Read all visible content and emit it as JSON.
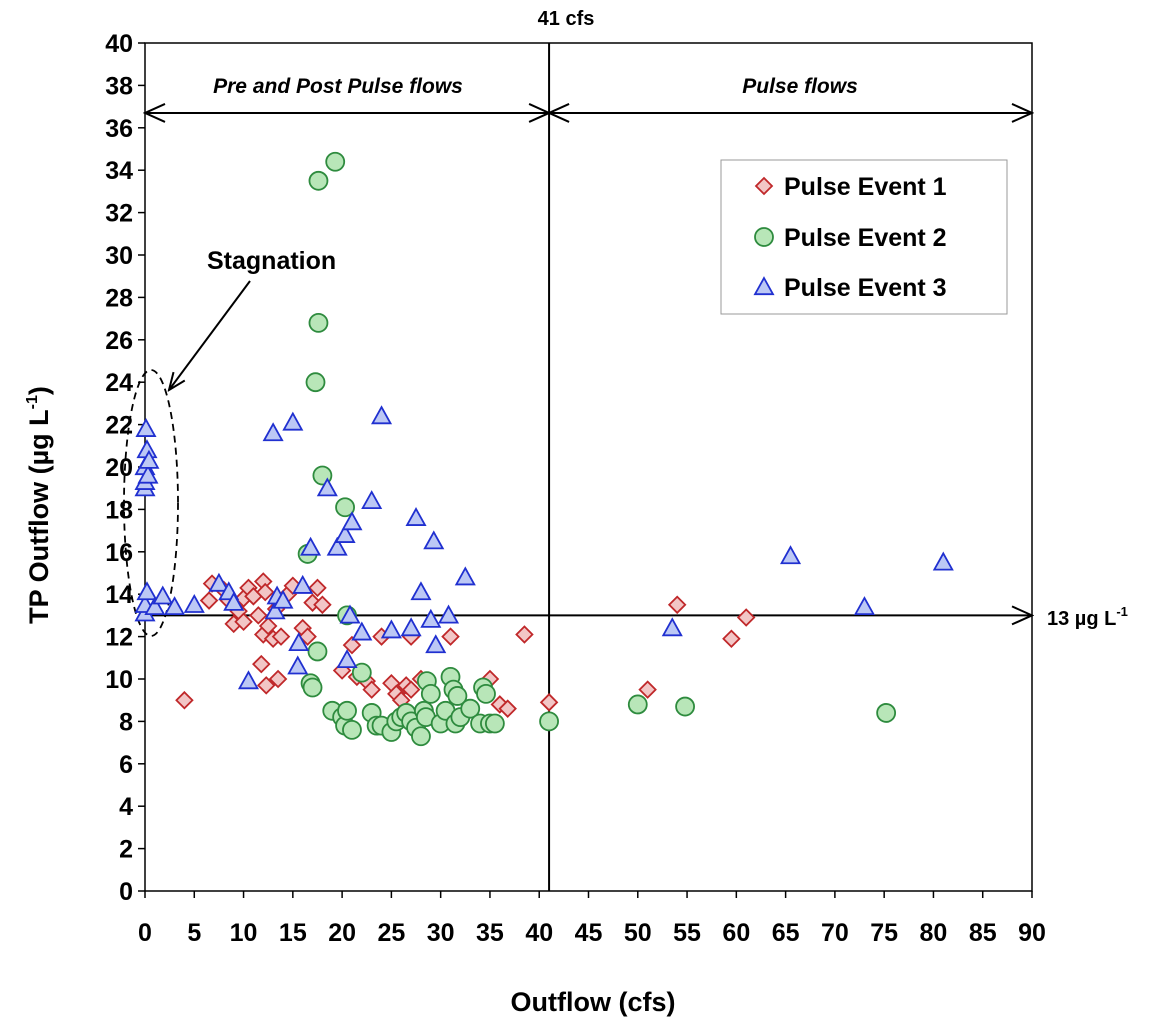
{
  "chart_data": {
    "type": "scatter",
    "xlabel": "Outflow (cfs)",
    "ylabel": "TP Outflow (µg L",
    "ylabel_sup": "-1",
    "ylabel_close": ")",
    "xlim": [
      0,
      90
    ],
    "ylim": [
      0,
      40
    ],
    "xticks": [
      "0",
      "5",
      "10",
      "15",
      "20",
      "25",
      "30",
      "35",
      "40",
      "45",
      "50",
      "55",
      "60",
      "65",
      "70",
      "75",
      "80",
      "85",
      "90"
    ],
    "yticks": [
      "0",
      "2",
      "4",
      "6",
      "8",
      "10",
      "12",
      "14",
      "16",
      "18",
      "20",
      "22",
      "24",
      "26",
      "28",
      "30",
      "32",
      "34",
      "36",
      "38",
      "40"
    ],
    "grid": false,
    "legend_position": "top-right",
    "annotations": {
      "vline_label": "41 cfs",
      "vline_x": 41,
      "hline_label": "13 µg L",
      "hline_label_sup": "-1",
      "hline_y": 13,
      "region_left": "Pre and Post Pulse flows",
      "region_right": "Pulse flows",
      "region_arrow_y": 36.7,
      "stagnation": "Stagnation"
    },
    "series": [
      {
        "name": "Pulse Event 1",
        "marker": "diamond",
        "fill": "#f2c6c6",
        "stroke": "#c0282a",
        "points": [
          [
            4,
            9
          ],
          [
            6.5,
            13.7
          ],
          [
            6.8,
            14.5
          ],
          [
            8,
            14.2
          ],
          [
            8.5,
            13.7
          ],
          [
            9,
            12.6
          ],
          [
            9.5,
            13.2
          ],
          [
            10,
            13.8
          ],
          [
            10,
            12.7
          ],
          [
            10.5,
            14.3
          ],
          [
            11,
            13.9
          ],
          [
            11.5,
            13.0
          ],
          [
            11.8,
            10.7
          ],
          [
            12,
            12.1
          ],
          [
            12,
            14.6
          ],
          [
            12.2,
            14.1
          ],
          [
            12.3,
            9.7
          ],
          [
            12.5,
            12.5
          ],
          [
            13,
            11.9
          ],
          [
            13.3,
            13.3
          ],
          [
            13.5,
            10.0
          ],
          [
            13.8,
            12.0
          ],
          [
            14.5,
            14.0
          ],
          [
            15,
            14.4
          ],
          [
            16,
            12.4
          ],
          [
            16.5,
            12.0
          ],
          [
            17,
            13.6
          ],
          [
            17.5,
            14.3
          ],
          [
            18,
            13.5
          ],
          [
            20,
            10.4
          ],
          [
            20.5,
            13.0
          ],
          [
            21,
            11.6
          ],
          [
            21.5,
            10.1
          ],
          [
            22,
            10.3
          ],
          [
            22.5,
            9.9
          ],
          [
            23,
            9.5
          ],
          [
            24,
            12.0
          ],
          [
            25,
            9.8
          ],
          [
            25.5,
            9.3
          ],
          [
            26,
            9.0
          ],
          [
            26.5,
            9.7
          ],
          [
            27,
            9.5
          ],
          [
            27,
            12.0
          ],
          [
            28,
            10.0
          ],
          [
            31,
            12.0
          ],
          [
            35,
            10.0
          ],
          [
            36,
            8.8
          ],
          [
            36.8,
            8.6
          ],
          [
            38.5,
            12.1
          ],
          [
            41,
            8.9
          ],
          [
            51,
            9.5
          ],
          [
            54,
            13.5
          ],
          [
            59.5,
            11.9
          ],
          [
            61,
            12.9
          ]
        ]
      },
      {
        "name": "Pulse Event 2",
        "marker": "circle",
        "fill": "#b8e6b8",
        "stroke": "#2e8b3e",
        "points": [
          [
            16.5,
            15.9
          ],
          [
            16.8,
            9.8
          ],
          [
            17,
            9.6
          ],
          [
            17.3,
            24.0
          ],
          [
            17.5,
            11.3
          ],
          [
            17.6,
            26.8
          ],
          [
            17.6,
            33.5
          ],
          [
            18,
            19.6
          ],
          [
            19,
            8.5
          ],
          [
            19.3,
            34.4
          ],
          [
            20,
            8.2
          ],
          [
            20.3,
            7.8
          ],
          [
            20.3,
            18.1
          ],
          [
            20.5,
            8.5
          ],
          [
            20.5,
            13.0
          ],
          [
            21,
            7.6
          ],
          [
            22,
            10.3
          ],
          [
            23,
            8.4
          ],
          [
            23.5,
            7.8
          ],
          [
            24,
            7.8
          ],
          [
            25,
            7.5
          ],
          [
            25.5,
            8.0
          ],
          [
            26,
            8.2
          ],
          [
            26.5,
            8.4
          ],
          [
            27,
            8.0
          ],
          [
            27.5,
            7.7
          ],
          [
            28,
            7.3
          ],
          [
            28.3,
            8.5
          ],
          [
            28.5,
            8.2
          ],
          [
            28.6,
            9.9
          ],
          [
            29,
            9.3
          ],
          [
            30,
            7.9
          ],
          [
            30.5,
            8.5
          ],
          [
            31,
            10.1
          ],
          [
            31.3,
            9.5
          ],
          [
            31.5,
            7.9
          ],
          [
            31.7,
            9.2
          ],
          [
            32,
            8.2
          ],
          [
            33,
            8.6
          ],
          [
            34,
            7.9
          ],
          [
            34.3,
            9.6
          ],
          [
            34.6,
            9.3
          ],
          [
            35,
            7.9
          ],
          [
            35.5,
            7.9
          ],
          [
            41,
            8.0
          ],
          [
            50,
            8.8
          ],
          [
            54.8,
            8.7
          ],
          [
            75.2,
            8.4
          ]
        ]
      },
      {
        "name": "Pulse Event 3",
        "marker": "triangle",
        "fill": "#bcc8f5",
        "stroke": "#2030d0",
        "points": [
          [
            0,
            13.1
          ],
          [
            0,
            13.5
          ],
          [
            0,
            19.0
          ],
          [
            0,
            19.3
          ],
          [
            0,
            20.0
          ],
          [
            0.1,
            21.8
          ],
          [
            0.2,
            20.8
          ],
          [
            0.2,
            14.1
          ],
          [
            0.3,
            19.6
          ],
          [
            0.4,
            20.3
          ],
          [
            1,
            13.4
          ],
          [
            1.8,
            13.9
          ],
          [
            3,
            13.4
          ],
          [
            5,
            13.5
          ],
          [
            7.5,
            14.5
          ],
          [
            8.5,
            14.1
          ],
          [
            9,
            13.6
          ],
          [
            10.5,
            9.9
          ],
          [
            13,
            21.6
          ],
          [
            13.2,
            13.2
          ],
          [
            13.4,
            13.9
          ],
          [
            14,
            13.7
          ],
          [
            15,
            22.1
          ],
          [
            15.5,
            10.6
          ],
          [
            15.6,
            11.7
          ],
          [
            16,
            14.4
          ],
          [
            16.8,
            16.2
          ],
          [
            18.5,
            19.0
          ],
          [
            19.5,
            16.2
          ],
          [
            20.3,
            16.8
          ],
          [
            20.5,
            10.9
          ],
          [
            20.8,
            13.0
          ],
          [
            21,
            17.4
          ],
          [
            22,
            12.2
          ],
          [
            23,
            18.4
          ],
          [
            24,
            22.4
          ],
          [
            25,
            12.3
          ],
          [
            27,
            12.4
          ],
          [
            27.5,
            17.6
          ],
          [
            28,
            14.1
          ],
          [
            29,
            12.8
          ],
          [
            29.3,
            16.5
          ],
          [
            29.5,
            11.6
          ],
          [
            30.8,
            13.0
          ],
          [
            32.5,
            14.8
          ],
          [
            53.5,
            12.4
          ],
          [
            65.5,
            15.8
          ],
          [
            73,
            13.4
          ],
          [
            81,
            15.5
          ]
        ]
      }
    ]
  }
}
